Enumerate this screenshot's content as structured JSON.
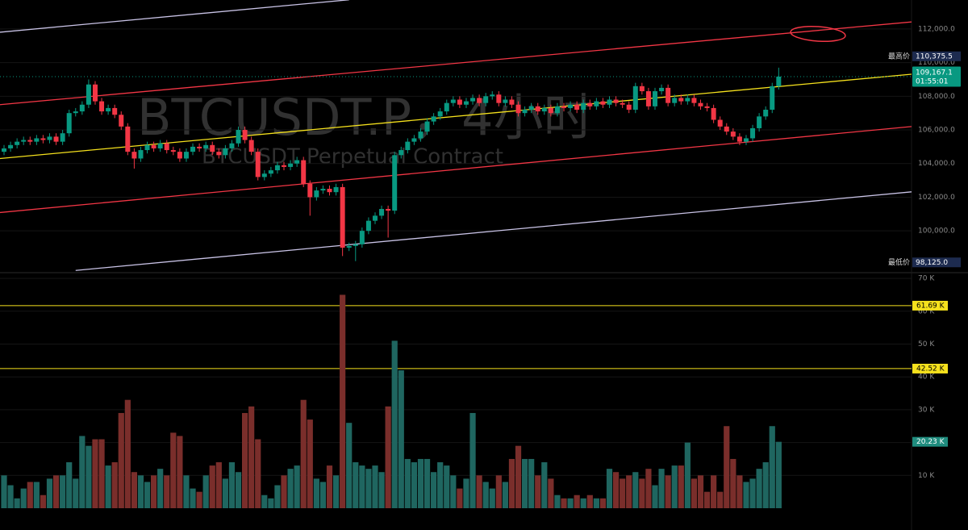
{
  "chart_data": [
    {
      "type": "candlestick",
      "title": "BTCUSDT.P，4小时",
      "subtitle": "BTCUSDT Perpetual Contract",
      "up_color": "#089981",
      "down_color": "#f23645",
      "open": [
        104700,
        104900,
        105100,
        105300,
        105400,
        105300,
        105500,
        105400,
        105600,
        105300,
        105800,
        107000,
        107100,
        107500,
        108700,
        107700,
        107100,
        107300,
        106900,
        106200,
        104700,
        104300,
        104800,
        105100,
        104900,
        105200,
        104800,
        104700,
        104300,
        104700,
        105000,
        104900,
        105100,
        104700,
        104500,
        104900,
        105200,
        106000,
        105400,
        104700,
        103200,
        103400,
        103600,
        103900,
        103800,
        104000,
        104200,
        102800,
        102000,
        102400,
        102500,
        102300,
        102600,
        99000,
        99100,
        99200,
        100000,
        100600,
        100900,
        101300,
        101200,
        104500,
        104800,
        105300,
        105500,
        105900,
        106500,
        106800,
        107100,
        107600,
        107800,
        107500,
        107700,
        107900,
        107600,
        108000,
        108100,
        107600,
        107800,
        107500,
        107000,
        107200,
        107400,
        107100,
        107300,
        107000,
        107400,
        107300,
        107500,
        107200,
        107600,
        107400,
        107700,
        107500,
        107800,
        107600,
        107500,
        107200,
        108600,
        108300,
        107400,
        108300,
        108500,
        107600,
        107900,
        107700,
        107900,
        107600,
        107400,
        107300,
        106600,
        106200,
        105900,
        105600,
        105300,
        105500,
        106100,
        106800,
        107200,
        108600
      ],
      "high": [
        105100,
        105300,
        105500,
        105600,
        105600,
        105700,
        105700,
        105800,
        105800,
        106000,
        107200,
        107300,
        107700,
        109000,
        108900,
        107900,
        107500,
        107500,
        107100,
        106400,
        104900,
        105000,
        105300,
        105300,
        105400,
        105400,
        105000,
        104900,
        104900,
        105200,
        105200,
        105300,
        105300,
        104900,
        105100,
        105400,
        106200,
        106200,
        105600,
        104900,
        103600,
        103800,
        104100,
        104100,
        104200,
        104400,
        104400,
        103000,
        102600,
        102700,
        102700,
        102800,
        102800,
        99300,
        99400,
        100200,
        100800,
        101100,
        101500,
        101500,
        104700,
        105000,
        105500,
        105700,
        106100,
        106700,
        107000,
        107300,
        107800,
        108000,
        108000,
        107900,
        108100,
        108100,
        108200,
        108300,
        108300,
        108000,
        108000,
        107700,
        107400,
        107600,
        107600,
        107500,
        107500,
        107600,
        107600,
        107700,
        107700,
        107800,
        107800,
        107900,
        107900,
        108000,
        108000,
        107800,
        107700,
        108800,
        108800,
        108500,
        108500,
        108700,
        108700,
        108100,
        108100,
        108100,
        108100,
        107800,
        107600,
        107500,
        106800,
        106400,
        106100,
        105800,
        105700,
        106300,
        107000,
        107400,
        108800,
        109700
      ],
      "low": [
        104500,
        104700,
        104900,
        105100,
        105100,
        105100,
        105200,
        105200,
        105100,
        105100,
        105600,
        106800,
        106900,
        107300,
        107500,
        106900,
        106900,
        106700,
        106000,
        104500,
        103700,
        104100,
        104600,
        104700,
        104700,
        104600,
        104500,
        104100,
        104100,
        104500,
        104700,
        104700,
        104500,
        104300,
        104300,
        104700,
        105000,
        105200,
        104500,
        103000,
        103000,
        103200,
        103400,
        103600,
        103600,
        103800,
        102600,
        100900,
        101800,
        102200,
        102100,
        102100,
        98500,
        98800,
        98200,
        99000,
        99800,
        100400,
        100700,
        99600,
        101000,
        104300,
        104600,
        105100,
        105300,
        105700,
        106300,
        106600,
        106900,
        107400,
        107300,
        107300,
        107500,
        107400,
        107400,
        107800,
        107400,
        107400,
        107300,
        106800,
        106800,
        107000,
        106900,
        106900,
        106800,
        106800,
        107100,
        107100,
        107000,
        107000,
        107200,
        107200,
        107300,
        107300,
        107400,
        107300,
        107000,
        107000,
        108100,
        107200,
        107200,
        108100,
        107400,
        107400,
        107500,
        107500,
        107400,
        107200,
        107100,
        106400,
        106000,
        105700,
        105400,
        105100,
        105100,
        105300,
        105900,
        106600,
        107000,
        108400
      ],
      "close": [
        104900,
        105100,
        105300,
        105400,
        105300,
        105500,
        105400,
        105600,
        105300,
        105800,
        107000,
        107100,
        107500,
        108700,
        107700,
        107100,
        107300,
        106900,
        106200,
        104700,
        104300,
        104800,
        105100,
        104900,
        105200,
        104800,
        104700,
        104300,
        104700,
        105000,
        104900,
        105100,
        104700,
        104500,
        104900,
        105200,
        106000,
        105400,
        104700,
        103200,
        103400,
        103600,
        103900,
        103800,
        104000,
        104200,
        102800,
        102000,
        102400,
        102500,
        102300,
        102600,
        99000,
        99100,
        99200,
        100000,
        100600,
        100900,
        101300,
        101200,
        104500,
        104800,
        105300,
        105500,
        105900,
        106500,
        106800,
        107100,
        107600,
        107800,
        107500,
        107700,
        107900,
        107600,
        108000,
        108100,
        107600,
        107800,
        107500,
        107000,
        107200,
        107400,
        107100,
        107300,
        107000,
        107400,
        107300,
        107500,
        107200,
        107600,
        107400,
        107700,
        107500,
        107800,
        107600,
        107500,
        107200,
        108600,
        108300,
        107400,
        108300,
        108500,
        107600,
        107900,
        107700,
        107900,
        107600,
        107400,
        107300,
        106600,
        106200,
        105900,
        105600,
        105300,
        105500,
        106100,
        106800,
        107200,
        108600,
        109167.1
      ],
      "ylim": [
        97610,
        113722
      ],
      "yticks": [
        {
          "value": 100000,
          "label": "100,000.0"
        },
        {
          "value": 102000,
          "label": "102,000.0"
        },
        {
          "value": 104000,
          "label": "104,000.0"
        },
        {
          "value": 106000,
          "label": "106,000.0"
        },
        {
          "value": 108000,
          "label": "108,000.0"
        },
        {
          "value": 110000,
          "label": "110,000.0"
        },
        {
          "value": 112000,
          "label": "112,000.0"
        }
      ],
      "lines": [
        {
          "color": "#c9c3e6",
          "start": [
            -1,
            111794
          ],
          "end": [
            53,
            113737
          ]
        },
        {
          "color": "#f23645",
          "start": [
            -1,
            107488
          ],
          "end": [
            140,
            112440
          ]
        },
        {
          "color": "#f5e11d",
          "start": [
            -1,
            104287
          ],
          "end": [
            140,
            109330
          ]
        },
        {
          "color": "#f23645",
          "start": [
            -1,
            101077
          ],
          "end": [
            140,
            106220
          ]
        },
        {
          "color": "#c9c3e6",
          "start": [
            11,
            97647
          ],
          "end": [
            140,
            102340
          ]
        }
      ],
      "high_mark": {
        "title": "最高价",
        "value": 110375.5,
        "label": "110,375.5"
      },
      "low_mark": {
        "title": "最低价",
        "value": 98125.0,
        "label": "98,125.0"
      },
      "last_label": "109,167.1",
      "countdown": "01:55:01"
    },
    {
      "type": "bar",
      "up_color": "#1f6660",
      "down_color": "#7a2e2b",
      "values": [
        10000,
        7000,
        3000,
        6000,
        8000,
        8000,
        4000,
        9000,
        10000,
        10000,
        14000,
        9000,
        22000,
        19000,
        21000,
        21000,
        13000,
        14000,
        29000,
        33000,
        11000,
        10000,
        8000,
        10000,
        12000,
        10000,
        23000,
        22000,
        10000,
        6000,
        5000,
        10000,
        13000,
        14000,
        9000,
        14000,
        11000,
        29000,
        31000,
        21000,
        4000,
        3000,
        7000,
        10000,
        12000,
        13000,
        33000,
        27000,
        9000,
        8000,
        13000,
        10000,
        65000,
        26000,
        14000,
        13000,
        12000,
        13000,
        11000,
        31000,
        51000,
        42000,
        15000,
        14000,
        15000,
        15000,
        11000,
        14000,
        13000,
        10000,
        6000,
        9000,
        29000,
        10000,
        8000,
        6000,
        10000,
        8000,
        15000,
        19000,
        15000,
        15000,
        10000,
        14000,
        9000,
        4000,
        3000,
        3000,
        4000,
        3000,
        4000,
        3000,
        3000,
        12000,
        11000,
        9000,
        10000,
        11000,
        9000,
        12000,
        7000,
        12000,
        10000,
        13000,
        13000,
        20000,
        9000,
        10000,
        5000,
        10000,
        5000,
        25000,
        15000,
        10000,
        8000,
        9000,
        12000,
        14000,
        25000,
        20230
      ],
      "last_value_label": "20.23 K",
      "ylim": [
        0,
        71250
      ],
      "yticks": [
        {
          "value": 10000,
          "label": "10 K"
        },
        {
          "value": 20000,
          "label": "20 K"
        },
        {
          "value": 30000,
          "label": "30 K"
        },
        {
          "value": 40000,
          "label": "40 K"
        },
        {
          "value": 50000,
          "label": "50 K"
        },
        {
          "value": 60000,
          "label": "60 K"
        },
        {
          "value": 70000,
          "label": "70 K"
        }
      ],
      "levels": [
        {
          "value": 61690,
          "label": "61.69 K",
          "color": "#f5e11d"
        },
        {
          "value": 42520,
          "label": "42.52 K",
          "color": "#f5e11d"
        }
      ]
    }
  ]
}
